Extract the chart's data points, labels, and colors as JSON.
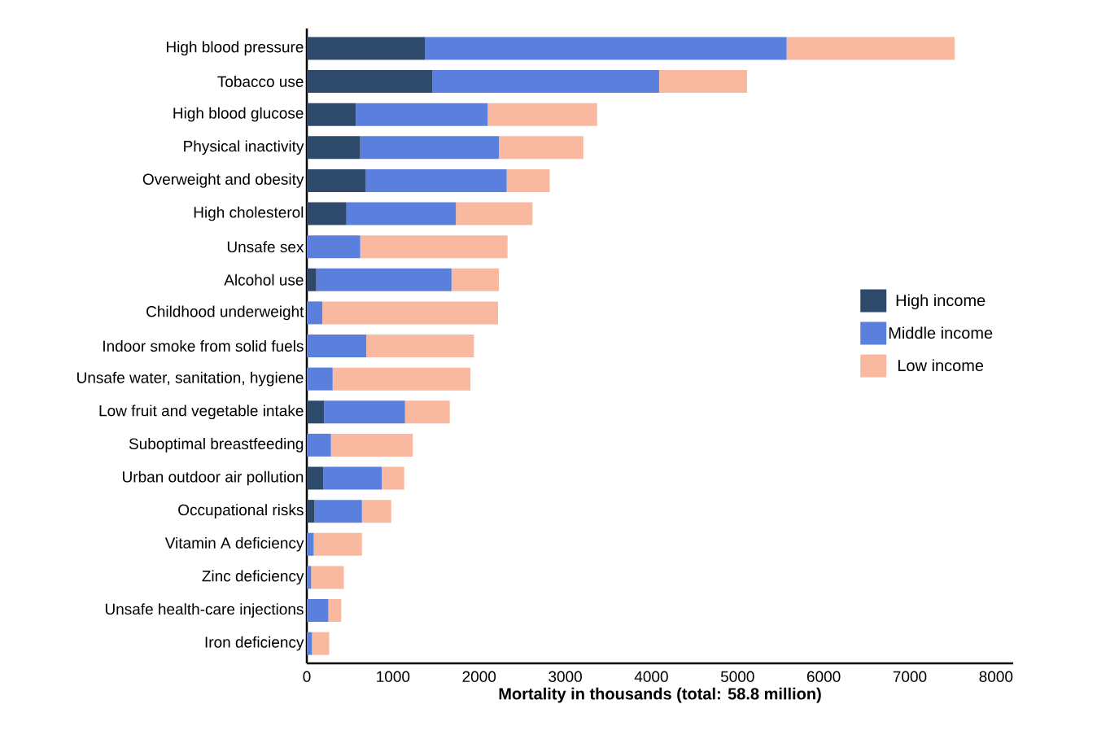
{
  "chart_data": {
    "type": "bar",
    "orientation": "horizontal",
    "stacked": true,
    "xlabel": "Mortality in thousands (total: 58.8 million)",
    "categories": [
      "High blood pressure",
      "Tobacco use",
      "High blood glucose",
      "Physical inactivity",
      "Overweight and obesity",
      "High cholesterol",
      "Unsafe sex",
      "Alcohol use",
      "Childhood underweight",
      "Indoor smoke from solid fuels",
      "Unsafe water, sanitation, hygiene",
      "Low fruit and vegetable intake",
      "Suboptimal breastfeeding",
      "Urban outdoor air pollution",
      "Occupational risks",
      "Vitamin A deficiency",
      "Zinc deficiency",
      "Unsafe health-care injections",
      "Iron deficiency"
    ],
    "series": [
      {
        "name": "High income",
        "color": "#2e4a6b",
        "values": [
          1370,
          1460,
          570,
          620,
          680,
          460,
          0,
          110,
          0,
          0,
          0,
          200,
          0,
          190,
          90,
          0,
          0,
          0,
          0
        ]
      },
      {
        "name": "Middle income",
        "color": "#5b7fdc",
        "values": [
          4200,
          2630,
          1530,
          1610,
          1640,
          1270,
          620,
          1570,
          180,
          690,
          300,
          940,
          280,
          680,
          550,
          80,
          50,
          250,
          60
        ]
      },
      {
        "name": "Low income",
        "color": "#f9b8a0",
        "values": [
          1950,
          1020,
          1270,
          980,
          500,
          890,
          1710,
          550,
          2040,
          1250,
          1600,
          520,
          950,
          260,
          340,
          560,
          380,
          150,
          200
        ]
      }
    ],
    "xlim": [
      0,
      8200
    ],
    "xticks": [
      0,
      1000,
      2000,
      3000,
      4000,
      5000,
      6000,
      7000,
      8000
    ],
    "grid": false,
    "legend": "right"
  }
}
